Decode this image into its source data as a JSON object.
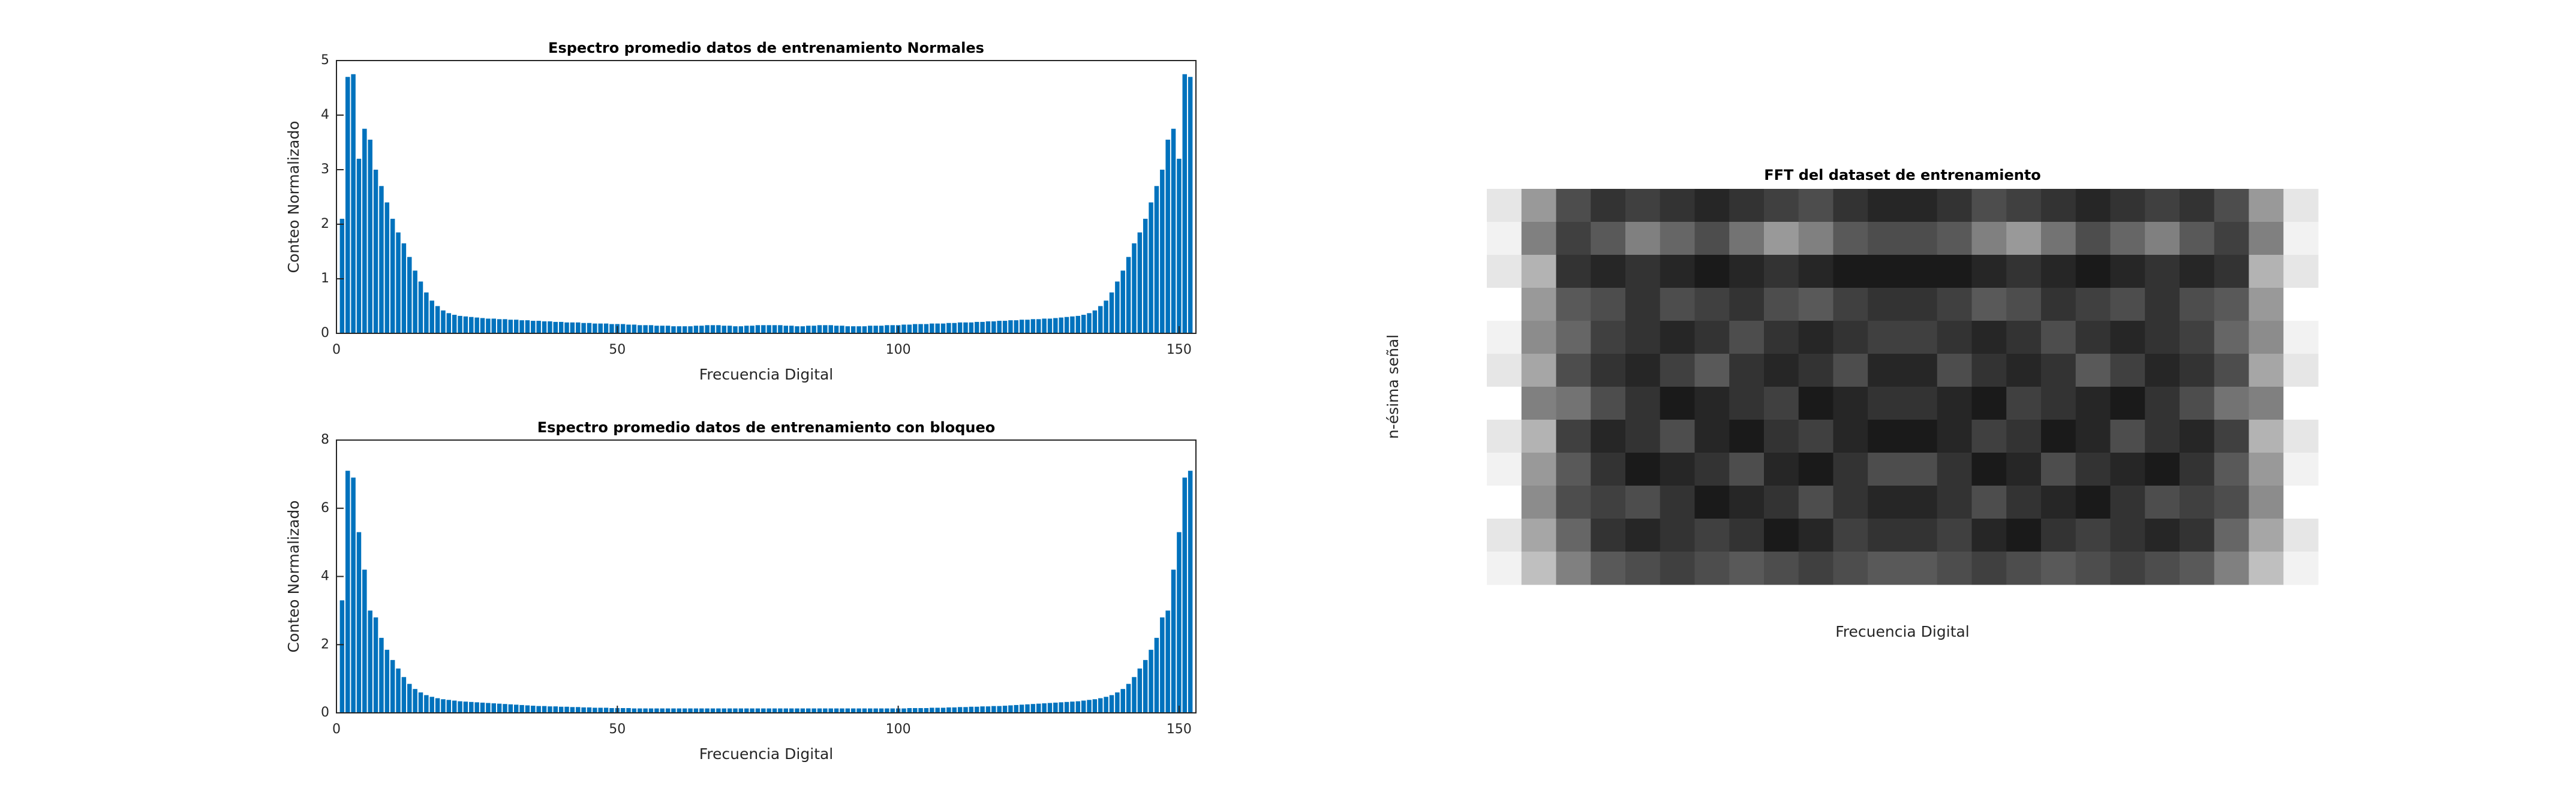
{
  "chart_data": [
    {
      "type": "bar",
      "title": "Espectro promedio datos de entrenamiento Normales",
      "xlabel": "Frecuencia Digital",
      "ylabel": "Conteo Normalizado",
      "color": "#0072bd",
      "x": [
        1,
        2,
        3,
        4,
        5,
        6,
        7,
        8,
        9,
        10,
        11,
        12,
        13,
        14,
        15,
        16,
        17,
        18,
        19,
        20,
        21,
        22,
        23,
        24,
        25,
        26,
        27,
        28,
        29,
        30,
        31,
        32,
        33,
        34,
        35,
        36,
        37,
        38,
        39,
        40,
        41,
        42,
        43,
        44,
        45,
        46,
        47,
        48,
        49,
        50,
        51,
        52,
        53,
        54,
        55,
        56,
        57,
        58,
        59,
        60,
        61,
        62,
        63,
        64,
        65,
        66,
        67,
        68,
        69,
        70,
        71,
        72,
        73,
        74,
        75,
        76,
        77,
        78,
        79,
        80,
        81,
        82,
        83,
        84,
        85,
        86,
        87,
        88,
        89,
        90,
        91,
        92,
        93,
        94,
        95,
        96,
        97,
        98,
        99,
        100,
        101,
        102,
        103,
        104,
        105,
        106,
        107,
        108,
        109,
        110,
        111,
        112,
        113,
        114,
        115,
        116,
        117,
        118,
        119,
        120,
        121,
        122,
        123,
        124,
        125,
        126,
        127,
        128,
        129,
        130,
        131,
        132,
        133,
        134,
        135,
        136,
        137,
        138,
        139,
        140,
        141,
        142,
        143,
        144,
        145,
        146,
        147,
        148,
        149,
        150,
        151,
        152
      ],
      "values": [
        2.1,
        4.7,
        4.75,
        3.2,
        3.75,
        3.55,
        3.0,
        2.7,
        2.4,
        2.1,
        1.85,
        1.65,
        1.4,
        1.15,
        0.95,
        0.75,
        0.6,
        0.5,
        0.42,
        0.37,
        0.34,
        0.32,
        0.31,
        0.3,
        0.29,
        0.28,
        0.27,
        0.27,
        0.26,
        0.26,
        0.25,
        0.25,
        0.24,
        0.24,
        0.23,
        0.23,
        0.22,
        0.22,
        0.21,
        0.21,
        0.2,
        0.2,
        0.2,
        0.19,
        0.19,
        0.18,
        0.18,
        0.18,
        0.17,
        0.17,
        0.17,
        0.16,
        0.16,
        0.15,
        0.15,
        0.15,
        0.14,
        0.14,
        0.14,
        0.13,
        0.13,
        0.13,
        0.13,
        0.14,
        0.14,
        0.15,
        0.15,
        0.15,
        0.14,
        0.14,
        0.13,
        0.13,
        0.14,
        0.14,
        0.15,
        0.15,
        0.15,
        0.15,
        0.15,
        0.14,
        0.14,
        0.13,
        0.13,
        0.14,
        0.14,
        0.15,
        0.15,
        0.15,
        0.14,
        0.14,
        0.13,
        0.13,
        0.13,
        0.13,
        0.14,
        0.14,
        0.14,
        0.15,
        0.15,
        0.15,
        0.16,
        0.16,
        0.17,
        0.17,
        0.17,
        0.18,
        0.18,
        0.18,
        0.19,
        0.19,
        0.2,
        0.2,
        0.2,
        0.21,
        0.21,
        0.22,
        0.22,
        0.23,
        0.23,
        0.24,
        0.24,
        0.25,
        0.25,
        0.26,
        0.26,
        0.27,
        0.27,
        0.28,
        0.29,
        0.3,
        0.31,
        0.32,
        0.34,
        0.37,
        0.42,
        0.5,
        0.6,
        0.75,
        0.95,
        1.15,
        1.4,
        1.65,
        1.85,
        2.1,
        2.4,
        2.7,
        3.0,
        3.55,
        3.75,
        3.2,
        4.75,
        4.7
      ],
      "xlim": [
        0,
        153
      ],
      "xticks": [
        0,
        50,
        100,
        150
      ],
      "ylim": [
        0,
        5
      ],
      "yticks": [
        0,
        1,
        2,
        3,
        4,
        5
      ]
    },
    {
      "type": "bar",
      "title": "Espectro promedio datos de entrenamiento con bloqueo",
      "xlabel": "Frecuencia Digital",
      "ylabel": "Conteo Normalizado",
      "color": "#0072bd",
      "x": [
        1,
        2,
        3,
        4,
        5,
        6,
        7,
        8,
        9,
        10,
        11,
        12,
        13,
        14,
        15,
        16,
        17,
        18,
        19,
        20,
        21,
        22,
        23,
        24,
        25,
        26,
        27,
        28,
        29,
        30,
        31,
        32,
        33,
        34,
        35,
        36,
        37,
        38,
        39,
        40,
        41,
        42,
        43,
        44,
        45,
        46,
        47,
        48,
        49,
        50,
        51,
        52,
        53,
        54,
        55,
        56,
        57,
        58,
        59,
        60,
        61,
        62,
        63,
        64,
        65,
        66,
        67,
        68,
        69,
        70,
        71,
        72,
        73,
        74,
        75,
        76,
        77,
        78,
        79,
        80,
        81,
        82,
        83,
        84,
        85,
        86,
        87,
        88,
        89,
        90,
        91,
        92,
        93,
        94,
        95,
        96,
        97,
        98,
        99,
        100,
        101,
        102,
        103,
        104,
        105,
        106,
        107,
        108,
        109,
        110,
        111,
        112,
        113,
        114,
        115,
        116,
        117,
        118,
        119,
        120,
        121,
        122,
        123,
        124,
        125,
        126,
        127,
        128,
        129,
        130,
        131,
        132,
        133,
        134,
        135,
        136,
        137,
        138,
        139,
        140,
        141,
        142,
        143,
        144,
        145,
        146,
        147,
        148,
        149,
        150,
        151,
        152
      ],
      "values": [
        3.3,
        7.1,
        6.9,
        5.3,
        4.2,
        3.0,
        2.8,
        2.2,
        1.85,
        1.55,
        1.3,
        1.05,
        0.85,
        0.7,
        0.6,
        0.52,
        0.47,
        0.43,
        0.4,
        0.38,
        0.36,
        0.34,
        0.33,
        0.32,
        0.31,
        0.3,
        0.29,
        0.28,
        0.27,
        0.26,
        0.25,
        0.24,
        0.23,
        0.22,
        0.21,
        0.2,
        0.2,
        0.19,
        0.19,
        0.18,
        0.18,
        0.17,
        0.17,
        0.16,
        0.16,
        0.15,
        0.15,
        0.15,
        0.14,
        0.14,
        0.14,
        0.14,
        0.13,
        0.13,
        0.13,
        0.13,
        0.13,
        0.13,
        0.13,
        0.13,
        0.13,
        0.13,
        0.13,
        0.13,
        0.13,
        0.13,
        0.13,
        0.13,
        0.13,
        0.13,
        0.13,
        0.13,
        0.13,
        0.13,
        0.13,
        0.13,
        0.13,
        0.13,
        0.13,
        0.13,
        0.13,
        0.13,
        0.13,
        0.13,
        0.13,
        0.13,
        0.13,
        0.13,
        0.13,
        0.13,
        0.13,
        0.13,
        0.13,
        0.13,
        0.13,
        0.13,
        0.13,
        0.13,
        0.13,
        0.13,
        0.13,
        0.14,
        0.14,
        0.14,
        0.14,
        0.15,
        0.15,
        0.15,
        0.16,
        0.16,
        0.17,
        0.17,
        0.18,
        0.18,
        0.19,
        0.19,
        0.2,
        0.2,
        0.21,
        0.22,
        0.23,
        0.24,
        0.25,
        0.26,
        0.27,
        0.28,
        0.29,
        0.3,
        0.31,
        0.32,
        0.33,
        0.34,
        0.36,
        0.38,
        0.4,
        0.43,
        0.47,
        0.52,
        0.6,
        0.7,
        0.85,
        1.05,
        1.3,
        1.55,
        1.85,
        2.2,
        2.8,
        3.0,
        4.2,
        5.3,
        6.9,
        7.1
      ],
      "xlim": [
        0,
        153
      ],
      "xticks": [
        0,
        50,
        100,
        150
      ],
      "ylim": [
        0,
        8
      ],
      "yticks": [
        0,
        2,
        4,
        6,
        8
      ]
    },
    {
      "type": "heatmap",
      "title": "FFT del dataset de entrenamiento",
      "xlabel": "Frecuencia Digital",
      "ylabel": "n-ésima señal",
      "colormap": "gray",
      "values": [
        [
          0.9,
          0.6,
          0.3,
          0.2,
          0.25,
          0.2,
          0.15,
          0.2,
          0.25,
          0.3,
          0.2,
          0.15,
          0.15,
          0.2,
          0.3,
          0.25,
          0.2,
          0.15,
          0.2,
          0.25,
          0.2,
          0.3,
          0.6,
          0.9
        ],
        [
          0.95,
          0.5,
          0.25,
          0.35,
          0.5,
          0.4,
          0.3,
          0.45,
          0.6,
          0.5,
          0.35,
          0.3,
          0.3,
          0.35,
          0.5,
          0.6,
          0.45,
          0.3,
          0.4,
          0.5,
          0.35,
          0.25,
          0.5,
          0.95
        ],
        [
          0.9,
          0.7,
          0.2,
          0.15,
          0.2,
          0.15,
          0.1,
          0.15,
          0.2,
          0.15,
          0.1,
          0.1,
          0.1,
          0.1,
          0.15,
          0.2,
          0.15,
          0.1,
          0.15,
          0.2,
          0.15,
          0.2,
          0.7,
          0.9
        ],
        [
          1,
          0.6,
          0.35,
          0.3,
          0.2,
          0.3,
          0.25,
          0.2,
          0.3,
          0.35,
          0.25,
          0.2,
          0.2,
          0.25,
          0.35,
          0.3,
          0.2,
          0.25,
          0.3,
          0.2,
          0.3,
          0.35,
          0.6,
          1
        ],
        [
          0.95,
          0.55,
          0.4,
          0.25,
          0.2,
          0.15,
          0.2,
          0.3,
          0.2,
          0.15,
          0.2,
          0.25,
          0.25,
          0.2,
          0.15,
          0.2,
          0.3,
          0.2,
          0.15,
          0.2,
          0.25,
          0.4,
          0.55,
          0.95
        ],
        [
          0.9,
          0.65,
          0.3,
          0.2,
          0.15,
          0.25,
          0.35,
          0.2,
          0.15,
          0.2,
          0.3,
          0.15,
          0.15,
          0.3,
          0.2,
          0.15,
          0.2,
          0.35,
          0.25,
          0.15,
          0.2,
          0.3,
          0.65,
          0.9
        ],
        [
          1,
          0.5,
          0.45,
          0.3,
          0.2,
          0.1,
          0.15,
          0.2,
          0.25,
          0.1,
          0.15,
          0.2,
          0.2,
          0.15,
          0.1,
          0.25,
          0.2,
          0.15,
          0.1,
          0.2,
          0.3,
          0.45,
          0.5,
          1
        ],
        [
          0.9,
          0.7,
          0.25,
          0.15,
          0.2,
          0.3,
          0.15,
          0.1,
          0.2,
          0.25,
          0.15,
          0.1,
          0.1,
          0.15,
          0.25,
          0.2,
          0.1,
          0.15,
          0.3,
          0.2,
          0.15,
          0.25,
          0.7,
          0.9
        ],
        [
          0.95,
          0.6,
          0.35,
          0.2,
          0.1,
          0.15,
          0.2,
          0.3,
          0.15,
          0.1,
          0.2,
          0.3,
          0.3,
          0.2,
          0.1,
          0.15,
          0.3,
          0.2,
          0.15,
          0.1,
          0.2,
          0.35,
          0.6,
          0.95
        ],
        [
          1,
          0.55,
          0.3,
          0.25,
          0.3,
          0.2,
          0.1,
          0.15,
          0.2,
          0.3,
          0.2,
          0.15,
          0.15,
          0.2,
          0.3,
          0.2,
          0.15,
          0.1,
          0.2,
          0.3,
          0.25,
          0.3,
          0.55,
          1
        ],
        [
          0.9,
          0.65,
          0.4,
          0.2,
          0.15,
          0.2,
          0.25,
          0.2,
          0.1,
          0.15,
          0.25,
          0.2,
          0.2,
          0.25,
          0.15,
          0.1,
          0.2,
          0.25,
          0.2,
          0.15,
          0.2,
          0.4,
          0.65,
          0.9
        ],
        [
          0.95,
          0.75,
          0.5,
          0.35,
          0.3,
          0.25,
          0.3,
          0.35,
          0.3,
          0.25,
          0.3,
          0.35,
          0.35,
          0.3,
          0.25,
          0.3,
          0.35,
          0.3,
          0.25,
          0.3,
          0.35,
          0.5,
          0.75,
          0.95
        ]
      ]
    }
  ]
}
